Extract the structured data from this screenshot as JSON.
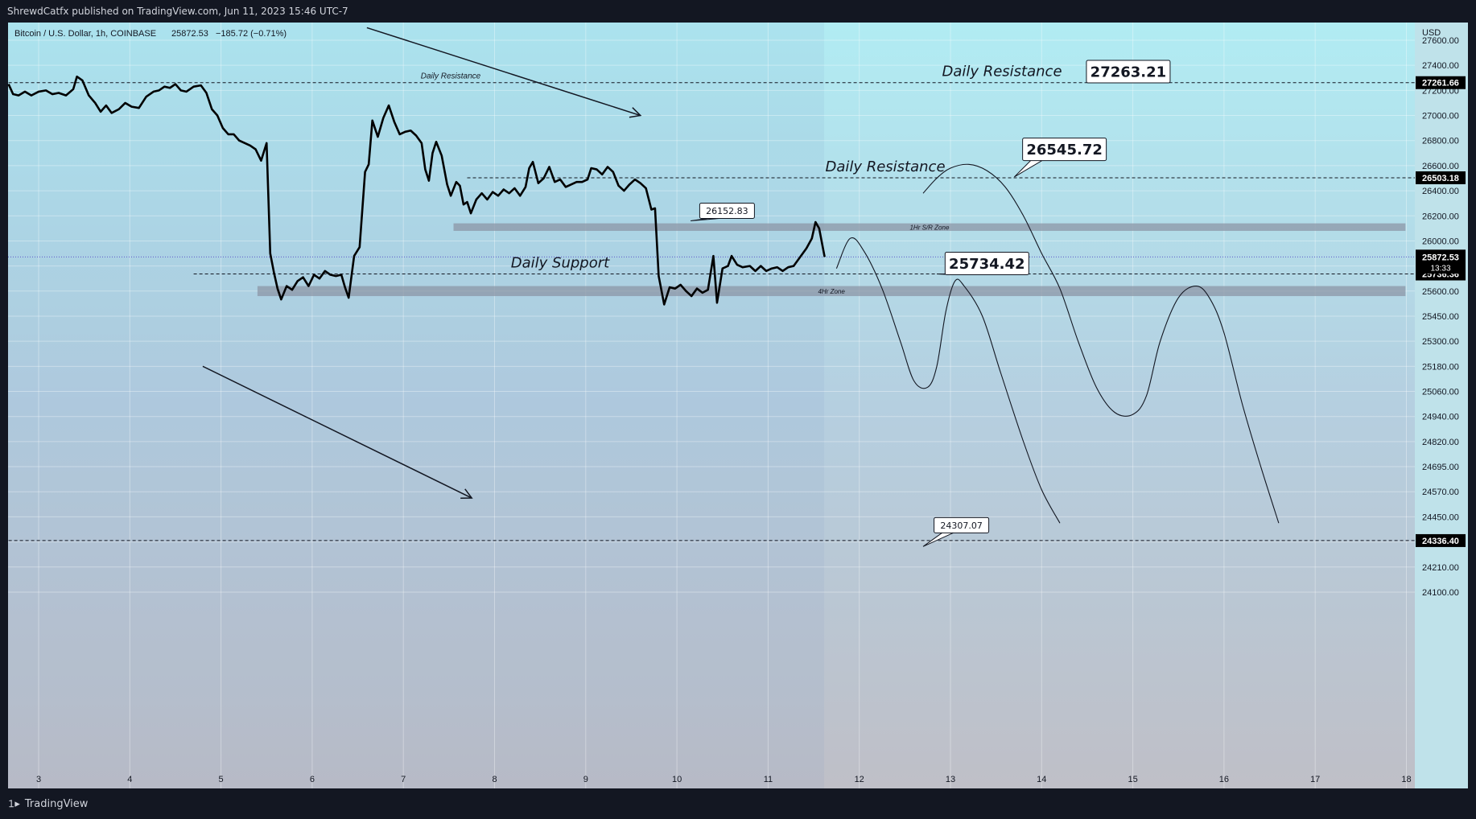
{
  "header": {
    "published": "ShrewdCatfx published on TradingView.com, Jun 11, 2023 15:46 UTC-7"
  },
  "footer": {
    "brand": "TradingView",
    "logo_icon": "tradingview-logo-icon"
  },
  "colors": {
    "price_line": "#000000",
    "current_price_line": "#5b57c9",
    "zone_fill": "#8c96a6",
    "label_bg": "#000000",
    "label_text": "#ffffff",
    "bg_top": "#b2ebf2",
    "bg_bottom": "#bdbec7"
  },
  "chart_data": {
    "type": "line",
    "symbol": "Bitcoin / U.S. Dollar, 1h, COINBASE",
    "last_price": "25872.53",
    "change": "−185.72 (−0.71%)",
    "currency": "USD",
    "x_ticks": [
      {
        "v": 3,
        "label": "3"
      },
      {
        "v": 4,
        "label": "4"
      },
      {
        "v": 5,
        "label": "5"
      },
      {
        "v": 6,
        "label": "6"
      },
      {
        "v": 7,
        "label": "7"
      },
      {
        "v": 8,
        "label": "8"
      },
      {
        "v": 9,
        "label": "9"
      },
      {
        "v": 10,
        "label": "10"
      },
      {
        "v": 11,
        "label": "11"
      },
      {
        "v": 12,
        "label": "12"
      },
      {
        "v": 13,
        "label": "13"
      },
      {
        "v": 14,
        "label": "14"
      },
      {
        "v": 15,
        "label": "15"
      },
      {
        "v": 16,
        "label": "16"
      },
      {
        "v": 17,
        "label": "17"
      },
      {
        "v": 18,
        "label": "18"
      }
    ],
    "y_ticks": [
      "27600.00",
      "27400.00",
      "27200.00",
      "27000.00",
      "26800.00",
      "26600.00",
      "26400.00",
      "26200.00",
      "26000.00",
      "25800.00",
      "25600.00",
      "25450.00",
      "25300.00",
      "25180.00",
      "25060.00",
      "24940.00",
      "24820.00",
      "24695.00",
      "24570.00",
      "24450.00",
      "24330.00",
      "24210.00",
      "24100.00"
    ],
    "y_tick_values": [
      27600,
      27400,
      27200,
      27000,
      26800,
      26600,
      26400,
      26200,
      26000,
      25800,
      25600,
      25450,
      25300,
      25180,
      25060,
      24940,
      24820,
      24695,
      24570,
      24450,
      24330,
      24210,
      24100
    ],
    "series": [
      {
        "values": [
          [
            2.67,
            27250
          ],
          [
            2.72,
            27170
          ],
          [
            2.78,
            27160
          ],
          [
            2.85,
            27190
          ],
          [
            2.92,
            27160
          ],
          [
            3.0,
            27190
          ],
          [
            3.08,
            27200
          ],
          [
            3.15,
            27170
          ],
          [
            3.22,
            27180
          ],
          [
            3.3,
            27160
          ],
          [
            3.38,
            27210
          ],
          [
            3.42,
            27310
          ],
          [
            3.48,
            27280
          ],
          [
            3.55,
            27160
          ],
          [
            3.62,
            27100
          ],
          [
            3.68,
            27030
          ],
          [
            3.74,
            27080
          ],
          [
            3.8,
            27020
          ],
          [
            3.88,
            27050
          ],
          [
            3.95,
            27100
          ],
          [
            4.02,
            27070
          ],
          [
            4.1,
            27060
          ],
          [
            4.18,
            27150
          ],
          [
            4.26,
            27190
          ],
          [
            4.32,
            27200
          ],
          [
            4.38,
            27230
          ],
          [
            4.44,
            27220
          ],
          [
            4.5,
            27250
          ],
          [
            4.56,
            27200
          ],
          [
            4.62,
            27190
          ],
          [
            4.7,
            27230
          ],
          [
            4.78,
            27240
          ],
          [
            4.84,
            27180
          ],
          [
            4.9,
            27050
          ],
          [
            4.96,
            27000
          ],
          [
            5.02,
            26900
          ],
          [
            5.08,
            26850
          ],
          [
            5.14,
            26850
          ],
          [
            5.2,
            26800
          ],
          [
            5.26,
            26780
          ],
          [
            5.32,
            26760
          ],
          [
            5.38,
            26730
          ],
          [
            5.44,
            26640
          ],
          [
            5.5,
            26780
          ],
          [
            5.54,
            25900
          ],
          [
            5.58,
            25750
          ],
          [
            5.62,
            25620
          ],
          [
            5.66,
            25550
          ],
          [
            5.72,
            25640
          ],
          [
            5.78,
            25610
          ],
          [
            5.84,
            25680
          ],
          [
            5.9,
            25710
          ],
          [
            5.96,
            25640
          ],
          [
            6.02,
            25730
          ],
          [
            6.08,
            25700
          ],
          [
            6.14,
            25760
          ],
          [
            6.2,
            25730
          ],
          [
            6.26,
            25720
          ],
          [
            6.32,
            25730
          ],
          [
            6.36,
            25630
          ],
          [
            6.4,
            25560
          ],
          [
            6.46,
            25880
          ],
          [
            6.52,
            25950
          ],
          [
            6.58,
            26550
          ],
          [
            6.62,
            26610
          ],
          [
            6.66,
            26960
          ],
          [
            6.72,
            26830
          ],
          [
            6.78,
            26980
          ],
          [
            6.84,
            27080
          ],
          [
            6.9,
            26950
          ],
          [
            6.96,
            26850
          ],
          [
            7.02,
            26870
          ],
          [
            7.08,
            26880
          ],
          [
            7.14,
            26840
          ],
          [
            7.2,
            26780
          ],
          [
            7.24,
            26570
          ],
          [
            7.28,
            26480
          ],
          [
            7.32,
            26700
          ],
          [
            7.36,
            26790
          ],
          [
            7.42,
            26680
          ],
          [
            7.48,
            26450
          ],
          [
            7.52,
            26360
          ],
          [
            7.58,
            26470
          ],
          [
            7.62,
            26440
          ],
          [
            7.66,
            26290
          ],
          [
            7.7,
            26310
          ],
          [
            7.74,
            26220
          ],
          [
            7.8,
            26330
          ],
          [
            7.86,
            26380
          ],
          [
            7.92,
            26330
          ],
          [
            7.98,
            26390
          ],
          [
            8.04,
            26360
          ],
          [
            8.1,
            26410
          ],
          [
            8.16,
            26380
          ],
          [
            8.22,
            26420
          ],
          [
            8.28,
            26360
          ],
          [
            8.34,
            26430
          ],
          [
            8.38,
            26580
          ],
          [
            8.42,
            26630
          ],
          [
            8.48,
            26460
          ],
          [
            8.54,
            26500
          ],
          [
            8.6,
            26590
          ],
          [
            8.66,
            26470
          ],
          [
            8.72,
            26490
          ],
          [
            8.78,
            26430
          ],
          [
            8.84,
            26450
          ],
          [
            8.9,
            26470
          ],
          [
            8.96,
            26470
          ],
          [
            9.02,
            26490
          ],
          [
            9.06,
            26580
          ],
          [
            9.12,
            26570
          ],
          [
            9.18,
            26530
          ],
          [
            9.24,
            26590
          ],
          [
            9.3,
            26550
          ],
          [
            9.36,
            26440
          ],
          [
            9.42,
            26400
          ],
          [
            9.48,
            26450
          ],
          [
            9.54,
            26490
          ],
          [
            9.6,
            26460
          ],
          [
            9.66,
            26420
          ],
          [
            9.72,
            26250
          ],
          [
            9.76,
            26260
          ],
          [
            9.8,
            25720
          ],
          [
            9.86,
            25520
          ],
          [
            9.92,
            25630
          ],
          [
            9.98,
            25620
          ],
          [
            10.04,
            25650
          ],
          [
            10.1,
            25600
          ],
          [
            10.16,
            25570
          ],
          [
            10.22,
            25620
          ],
          [
            10.28,
            25590
          ],
          [
            10.34,
            25610
          ],
          [
            10.4,
            25880
          ],
          [
            10.44,
            25530
          ],
          [
            10.5,
            25780
          ],
          [
            10.56,
            25800
          ],
          [
            10.6,
            25880
          ],
          [
            10.66,
            25810
          ],
          [
            10.72,
            25790
          ],
          [
            10.8,
            25800
          ],
          [
            10.86,
            25760
          ],
          [
            10.92,
            25800
          ],
          [
            10.98,
            25760
          ],
          [
            11.04,
            25780
          ],
          [
            11.1,
            25790
          ],
          [
            11.16,
            25760
          ],
          [
            11.22,
            25790
          ],
          [
            11.28,
            25800
          ],
          [
            11.34,
            25860
          ],
          [
            11.42,
            25940
          ],
          [
            11.48,
            26020
          ],
          [
            11.52,
            26150
          ],
          [
            11.56,
            26100
          ],
          [
            11.62,
            25872
          ]
        ]
      }
    ],
    "horizontal_levels": [
      {
        "price": 27261.66,
        "label": "27261.66",
        "line_start": 2.67,
        "caption": "Daily Resistance",
        "caption_small": "Daily Resistance"
      },
      {
        "price": 26503.18,
        "label": "26503.18",
        "line_start": 7.7,
        "caption": "Daily Resistance"
      },
      {
        "price": 25736.36,
        "label": "25736.36",
        "line_start": 4.7,
        "caption": "Daily Support"
      },
      {
        "price": 24336.4,
        "label": "24336.40",
        "line_start": 2.67
      }
    ],
    "current_price": {
      "price": 25872.53,
      "label": "25872.53",
      "countdown": "13:33"
    },
    "zones": [
      {
        "name": "1Hr S/R Zone",
        "from_x": 7.55,
        "to_x": 17.99,
        "y_low": 26080,
        "y_high": 26140
      },
      {
        "name": "4Hr Zone",
        "from_x": 5.4,
        "to_x": 17.99,
        "y_low": 25570,
        "y_high": 25640
      }
    ],
    "callouts": [
      {
        "text": "27263.21",
        "x": 14.95,
        "y": 27350,
        "tip_x": 14.5,
        "tip_y": 27262,
        "size": "large"
      },
      {
        "text": "26545.72",
        "x": 14.25,
        "y": 26730,
        "tip_x": 13.7,
        "tip_y": 26510,
        "size": "large"
      },
      {
        "text": "26152.83",
        "x": 10.55,
        "y": 26240,
        "tip_x": 10.15,
        "tip_y": 26160,
        "size": "small"
      },
      {
        "text": "25734.42",
        "x": 13.4,
        "y": 25820,
        "tip_x": 12.85,
        "tip_y": 25737,
        "size": "large"
      },
      {
        "text": "24307.07",
        "x": 13.12,
        "y": 24410,
        "tip_x": 12.7,
        "tip_y": 24308,
        "size": "small"
      }
    ],
    "projections": [
      [
        [
          11.75,
          25780
        ],
        [
          11.9,
          26020
        ],
        [
          12.05,
          25920
        ],
        [
          12.25,
          25620
        ],
        [
          12.45,
          25300
        ],
        [
          12.6,
          25110
        ],
        [
          12.75,
          25080
        ],
        [
          12.85,
          25180
        ],
        [
          12.95,
          25480
        ],
        [
          13.05,
          25680
        ],
        [
          13.15,
          25640
        ],
        [
          13.35,
          25450
        ],
        [
          13.55,
          25150
        ],
        [
          13.8,
          24820
        ],
        [
          14.0,
          24580
        ],
        [
          14.2,
          24420
        ]
      ],
      [
        [
          12.7,
          26380
        ],
        [
          12.85,
          26500
        ],
        [
          13.0,
          26580
        ],
        [
          13.2,
          26610
        ],
        [
          13.4,
          26560
        ],
        [
          13.6,
          26430
        ],
        [
          13.8,
          26200
        ],
        [
          14.0,
          25900
        ],
        [
          14.2,
          25620
        ],
        [
          14.4,
          25300
        ],
        [
          14.6,
          25080
        ],
        [
          14.8,
          24960
        ],
        [
          15.0,
          24950
        ],
        [
          15.15,
          25040
        ],
        [
          15.3,
          25300
        ],
        [
          15.5,
          25560
        ],
        [
          15.7,
          25640
        ],
        [
          15.85,
          25550
        ],
        [
          16.0,
          25350
        ],
        [
          16.2,
          25000
        ],
        [
          16.4,
          24700
        ],
        [
          16.6,
          24420
        ]
      ]
    ],
    "trend_arrows": [
      {
        "from": [
          6.6,
          27700
        ],
        "to": [
          9.6,
          27000
        ]
      },
      {
        "from": [
          4.8,
          25180
        ],
        "to": [
          7.75,
          24540
        ]
      }
    ],
    "grid": true,
    "legend": "top-left"
  }
}
